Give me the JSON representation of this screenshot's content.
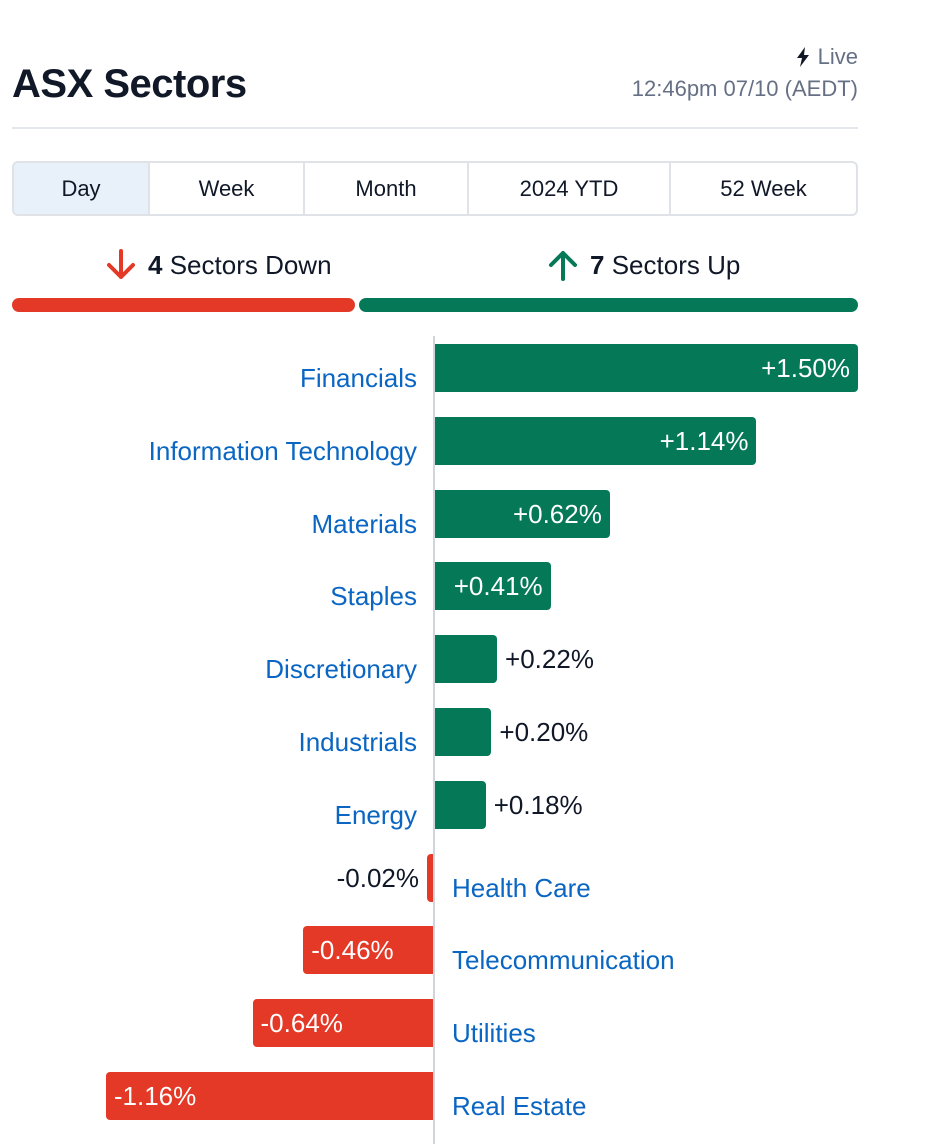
{
  "header": {
    "title": "ASX Sectors",
    "live_label": "Live",
    "timestamp": "12:46pm 07/10 (AEDT)"
  },
  "tabs": [
    {
      "label": "Day",
      "active": true
    },
    {
      "label": "Week",
      "active": false
    },
    {
      "label": "Month",
      "active": false
    },
    {
      "label": "2024 YTD",
      "active": false
    },
    {
      "label": "52 Week",
      "active": false
    }
  ],
  "summary": {
    "down_count": "4",
    "down_label": "Sectors Down",
    "up_count": "7",
    "up_label": "Sectors Up"
  },
  "colors": {
    "up": "#047857",
    "down": "#e53927",
    "label": "#0a66c2",
    "ratio_up": "#047857",
    "ratio_down": "#e53927"
  },
  "chart_data": {
    "type": "bar",
    "orientation": "horizontal",
    "unit": "%",
    "categories": [
      "Financials",
      "Information Technology",
      "Materials",
      "Staples",
      "Discretionary",
      "Industrials",
      "Energy",
      "Health Care",
      "Telecommunication",
      "Utilities",
      "Real Estate"
    ],
    "values": [
      1.5,
      1.14,
      0.62,
      0.41,
      0.22,
      0.2,
      0.18,
      -0.02,
      -0.46,
      -0.64,
      -1.16
    ],
    "labels": [
      "+1.50%",
      "+1.14%",
      "+0.62%",
      "+0.41%",
      "+0.22%",
      "+0.20%",
      "+0.18%",
      "-0.02%",
      "-0.46%",
      "-0.64%",
      "-1.16%"
    ],
    "xlim": [
      -1.5,
      1.5
    ]
  }
}
